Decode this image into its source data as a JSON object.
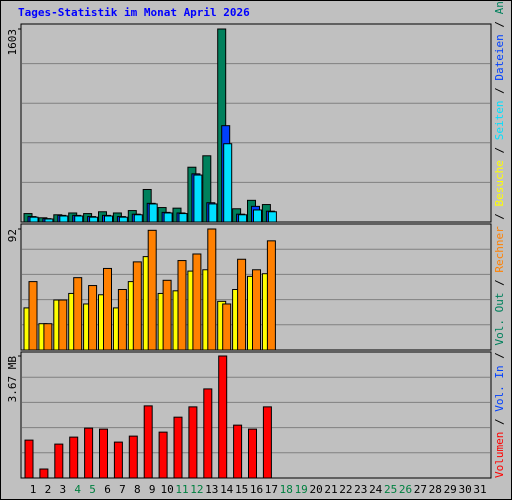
{
  "title": "Tages-Statistik im Monat April 2026",
  "legend_separator": "/",
  "chart_data": [
    {
      "type": "bar",
      "ylim": [
        0,
        1603
      ],
      "yticks": [
        1603
      ],
      "series": [
        {
          "name": "Anfragen",
          "color": "#00805c",
          "values": [
            70,
            35,
            60,
            75,
            70,
            85,
            75,
            95,
            270,
            120,
            115,
            455,
            550,
            1603,
            110,
            180,
            145,
            null,
            null,
            null,
            null,
            null,
            null,
            null,
            null,
            null,
            null,
            null,
            null,
            null,
            null
          ]
        },
        {
          "name": "Dateien",
          "color": "#0040ff",
          "values": [
            45,
            28,
            55,
            55,
            45,
            55,
            45,
            65,
            155,
            80,
            75,
            400,
            160,
            800,
            65,
            130,
            90,
            null,
            null,
            null,
            null,
            null,
            null,
            null,
            null,
            null,
            null,
            null,
            null,
            null,
            null
          ]
        },
        {
          "name": "Seiten",
          "color": "#00e0ff",
          "values": [
            40,
            25,
            50,
            50,
            40,
            50,
            40,
            60,
            150,
            75,
            70,
            390,
            150,
            650,
            60,
            100,
            85,
            null,
            null,
            null,
            null,
            null,
            null,
            null,
            null,
            null,
            null,
            null,
            null,
            null,
            null
          ]
        }
      ]
    },
    {
      "type": "bar",
      "ylim": [
        0,
        92
      ],
      "yticks": [
        92
      ],
      "series": [
        {
          "name": "Besuche",
          "color": "#ffff00",
          "values": [
            32,
            20,
            38,
            43,
            35,
            42,
            32,
            52,
            71,
            43,
            45,
            60,
            61,
            37,
            46,
            56,
            58,
            null,
            null,
            null,
            null,
            null,
            null,
            null,
            null,
            null,
            null,
            null,
            null,
            null,
            null
          ]
        },
        {
          "name": "Rechner",
          "color": "#ff8000",
          "values": [
            52,
            20,
            38,
            55,
            49,
            62,
            46,
            67,
            91,
            53,
            68,
            73,
            92,
            35,
            69,
            61,
            83,
            null,
            null,
            null,
            null,
            null,
            null,
            null,
            null,
            null,
            null,
            null,
            null,
            null,
            null
          ]
        }
      ]
    },
    {
      "type": "bar",
      "ylim": [
        0,
        3.67
      ],
      "yticks": [
        {
          "value": 3.67,
          "label": "3.67 MB"
        }
      ],
      "categories": [
        1,
        2,
        3,
        4,
        5,
        6,
        7,
        8,
        9,
        10,
        11,
        12,
        13,
        14,
        15,
        16,
        17,
        18,
        19,
        20,
        21,
        22,
        23,
        24,
        25,
        26,
        27,
        28,
        29,
        30,
        31
      ],
      "category_colors": [
        "#000000",
        "#000000",
        "#000000",
        "#008040",
        "#008040",
        "#000000",
        "#000000",
        "#000000",
        "#000000",
        "#000000",
        "#008040",
        "#008040",
        "#000000",
        "#000000",
        "#000000",
        "#000000",
        "#000000",
        "#008040",
        "#008040",
        "#000000",
        "#000000",
        "#000000",
        "#000000",
        "#000000",
        "#008040",
        "#008040",
        "#000000",
        "#000000",
        "#000000",
        "#000000",
        "#000000"
      ],
      "series": [
        {
          "name": "Vol. Out",
          "color": "#00805c",
          "values": [
            null,
            null,
            null,
            null,
            null,
            null,
            null,
            null,
            null,
            null,
            null,
            null,
            null,
            null,
            null,
            null,
            null,
            null,
            null,
            null,
            null,
            null,
            null,
            null,
            null,
            null,
            null,
            null,
            null,
            null,
            null
          ]
        },
        {
          "name": "Vol. In",
          "color": "#0040ff",
          "values": [
            null,
            null,
            null,
            null,
            null,
            null,
            null,
            null,
            null,
            null,
            null,
            null,
            null,
            null,
            null,
            null,
            null,
            null,
            null,
            null,
            null,
            null,
            null,
            null,
            null,
            null,
            null,
            null,
            null,
            null,
            null
          ]
        },
        {
          "name": "Volumen",
          "color": "#ff0000",
          "values": [
            1.14,
            0.27,
            1.02,
            1.23,
            1.5,
            1.47,
            1.08,
            1.26,
            2.17,
            1.38,
            1.83,
            2.14,
            2.68,
            3.67,
            1.59,
            1.47,
            2.14,
            null,
            null,
            null,
            null,
            null,
            null,
            null,
            null,
            null,
            null,
            null,
            null,
            null,
            null
          ]
        }
      ]
    }
  ]
}
